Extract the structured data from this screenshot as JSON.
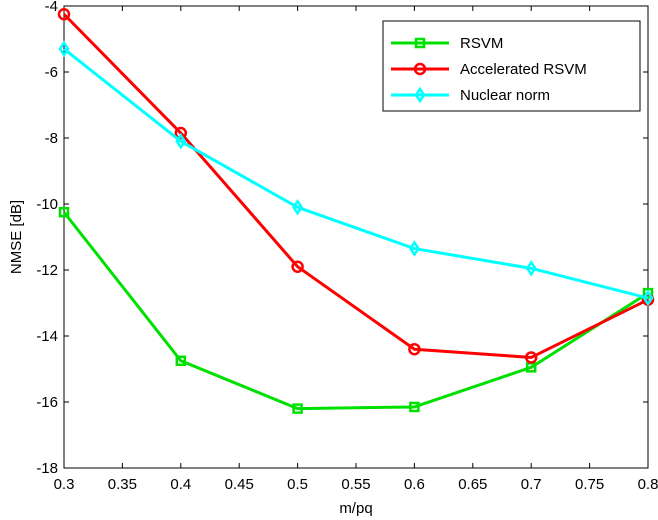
{
  "chart_data": {
    "type": "line",
    "xlabel": "m/pq",
    "ylabel": "NMSE [dB]",
    "xlim": [
      0.3,
      0.8
    ],
    "ylim": [
      -18,
      -4
    ],
    "xticks": [
      0.3,
      0.35,
      0.4,
      0.45,
      0.5,
      0.55,
      0.6,
      0.65,
      0.7,
      0.75,
      0.8
    ],
    "xtick_labels": [
      "0.3",
      "0.35",
      "0.4",
      "0.45",
      "0.5",
      "0.55",
      "0.6",
      "0.65",
      "0.7",
      "0.75",
      "0.8"
    ],
    "yticks": [
      -4,
      -6,
      -8,
      -10,
      -12,
      -14,
      -16,
      -18
    ],
    "ytick_labels": [
      "-4",
      "-6",
      "-8",
      "-10",
      "-12",
      "-14",
      "-16",
      "-18"
    ],
    "grid": false,
    "legend_position": "top-right",
    "x": [
      0.3,
      0.4,
      0.5,
      0.6,
      0.7,
      0.8
    ],
    "series": [
      {
        "name": "RSVM",
        "color": "#00e000",
        "marker": "square",
        "values": [
          -10.25,
          -14.75,
          -16.2,
          -16.15,
          -14.95,
          -12.7
        ]
      },
      {
        "name": "Accelerated RSVM",
        "color": "#ff0000",
        "marker": "circle",
        "values": [
          -4.25,
          -7.85,
          -11.9,
          -14.4,
          -14.65,
          -12.9
        ]
      },
      {
        "name": "Nuclear norm",
        "color": "#00ffff",
        "marker": "diamond",
        "values": [
          -5.3,
          -8.1,
          -10.1,
          -11.35,
          -11.95,
          -12.85
        ]
      }
    ]
  }
}
